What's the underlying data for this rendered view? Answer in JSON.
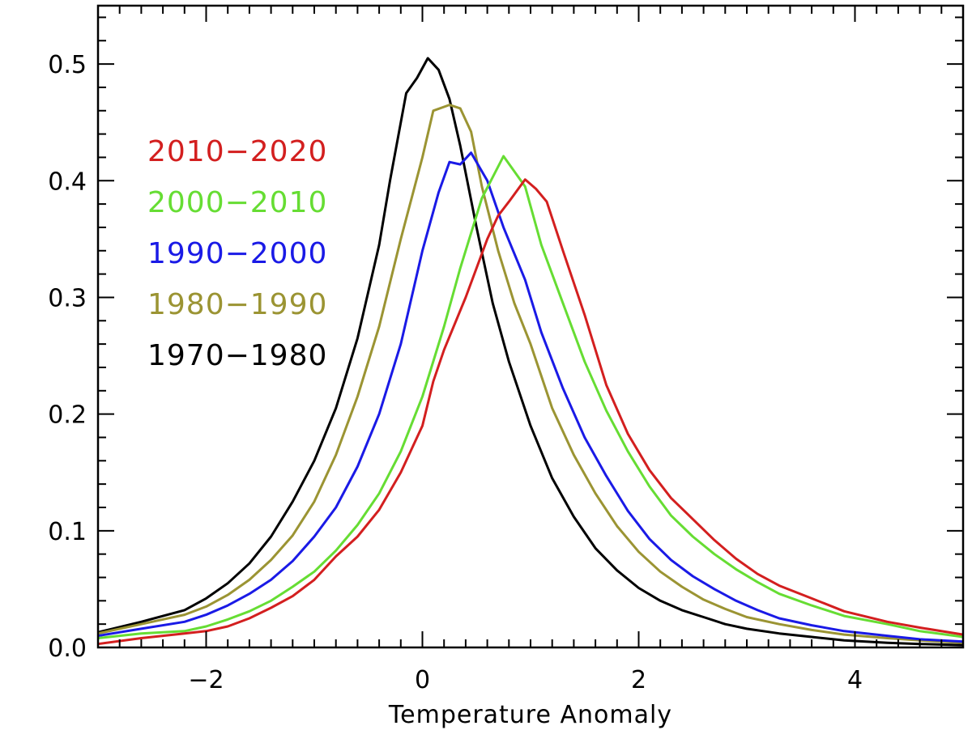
{
  "chart_data": {
    "type": "line",
    "title": "",
    "xlabel": "Temperature Anomaly",
    "ylabel": "",
    "xlim": [
      -3,
      5
    ],
    "ylim": [
      0,
      0.55
    ],
    "grid": false,
    "legend_position": "upper-left",
    "xticks": [
      -2,
      0,
      2,
      4
    ],
    "xtick_labels": [
      "−2",
      "0",
      "2",
      "4"
    ],
    "yticks": [
      0,
      0.1,
      0.2,
      0.3,
      0.4,
      0.5
    ],
    "ytick_labels": [
      "0.0",
      "0.1",
      "0.2",
      "0.3",
      "0.4",
      "0.5"
    ],
    "series": [
      {
        "name": "2010−2020",
        "color": "#d31f1f",
        "x": [
          -3.0,
          -2.6,
          -2.2,
          -2.0,
          -1.8,
          -1.6,
          -1.4,
          -1.2,
          -1.0,
          -0.8,
          -0.6,
          -0.4,
          -0.2,
          0.0,
          0.1,
          0.2,
          0.4,
          0.6,
          0.7,
          0.8,
          0.95,
          1.05,
          1.15,
          1.3,
          1.5,
          1.7,
          1.9,
          2.1,
          2.3,
          2.5,
          2.7,
          2.9,
          3.1,
          3.3,
          3.6,
          3.9,
          4.3,
          4.6,
          5.0
        ],
        "values": [
          0.003,
          0.008,
          0.012,
          0.014,
          0.018,
          0.025,
          0.034,
          0.044,
          0.058,
          0.078,
          0.095,
          0.118,
          0.15,
          0.19,
          0.228,
          0.255,
          0.3,
          0.35,
          0.37,
          0.382,
          0.401,
          0.393,
          0.382,
          0.34,
          0.285,
          0.225,
          0.183,
          0.152,
          0.128,
          0.11,
          0.092,
          0.076,
          0.063,
          0.053,
          0.042,
          0.031,
          0.022,
          0.017,
          0.011
        ]
      },
      {
        "name": "2000−2010",
        "color": "#66dd33",
        "x": [
          -3.0,
          -2.6,
          -2.2,
          -2.0,
          -1.8,
          -1.6,
          -1.4,
          -1.2,
          -1.0,
          -0.8,
          -0.6,
          -0.4,
          -0.2,
          0.0,
          0.2,
          0.35,
          0.55,
          0.75,
          0.95,
          1.1,
          1.3,
          1.5,
          1.7,
          1.9,
          2.1,
          2.3,
          2.5,
          2.7,
          2.9,
          3.1,
          3.3,
          3.6,
          3.9,
          4.3,
          4.6,
          5.0
        ],
        "values": [
          0.008,
          0.012,
          0.014,
          0.018,
          0.024,
          0.031,
          0.04,
          0.052,
          0.065,
          0.083,
          0.105,
          0.132,
          0.168,
          0.215,
          0.275,
          0.325,
          0.385,
          0.421,
          0.395,
          0.345,
          0.295,
          0.245,
          0.203,
          0.168,
          0.138,
          0.113,
          0.095,
          0.08,
          0.067,
          0.056,
          0.046,
          0.036,
          0.027,
          0.02,
          0.014,
          0.009
        ]
      },
      {
        "name": "1990−2000",
        "color": "#1a1ae6",
        "x": [
          -3.0,
          -2.6,
          -2.2,
          -2.0,
          -1.8,
          -1.6,
          -1.4,
          -1.2,
          -1.0,
          -0.8,
          -0.6,
          -0.4,
          -0.2,
          0.0,
          0.15,
          0.25,
          0.35,
          0.45,
          0.6,
          0.75,
          0.95,
          1.1,
          1.3,
          1.5,
          1.7,
          1.9,
          2.1,
          2.3,
          2.5,
          2.7,
          2.9,
          3.1,
          3.3,
          3.6,
          3.9,
          4.3,
          4.6,
          5.0
        ],
        "values": [
          0.01,
          0.016,
          0.022,
          0.028,
          0.036,
          0.046,
          0.058,
          0.074,
          0.095,
          0.12,
          0.155,
          0.2,
          0.26,
          0.34,
          0.39,
          0.416,
          0.414,
          0.424,
          0.4,
          0.36,
          0.315,
          0.27,
          0.222,
          0.18,
          0.147,
          0.117,
          0.093,
          0.075,
          0.061,
          0.05,
          0.04,
          0.032,
          0.025,
          0.019,
          0.014,
          0.01,
          0.007,
          0.005
        ]
      },
      {
        "name": "1980−1990",
        "color": "#9b9433",
        "x": [
          -3.0,
          -2.6,
          -2.2,
          -2.0,
          -1.8,
          -1.6,
          -1.4,
          -1.2,
          -1.0,
          -0.8,
          -0.6,
          -0.4,
          -0.2,
          0.0,
          0.1,
          0.25,
          0.35,
          0.45,
          0.55,
          0.7,
          0.85,
          1.0,
          1.2,
          1.4,
          1.6,
          1.8,
          2.0,
          2.2,
          2.4,
          2.6,
          2.8,
          3.0,
          3.3,
          3.6,
          3.9,
          4.3,
          4.6,
          5.0
        ],
        "values": [
          0.012,
          0.02,
          0.028,
          0.035,
          0.045,
          0.058,
          0.075,
          0.096,
          0.125,
          0.165,
          0.215,
          0.275,
          0.35,
          0.42,
          0.46,
          0.465,
          0.462,
          0.442,
          0.395,
          0.34,
          0.295,
          0.26,
          0.205,
          0.165,
          0.132,
          0.104,
          0.082,
          0.065,
          0.052,
          0.041,
          0.033,
          0.026,
          0.02,
          0.015,
          0.011,
          0.008,
          0.006,
          0.004
        ]
      },
      {
        "name": "1970−1980",
        "color": "#000000",
        "x": [
          -3.0,
          -2.6,
          -2.2,
          -2.0,
          -1.8,
          -1.6,
          -1.4,
          -1.2,
          -1.0,
          -0.8,
          -0.6,
          -0.4,
          -0.3,
          -0.15,
          -0.05,
          0.05,
          0.15,
          0.25,
          0.35,
          0.5,
          0.65,
          0.8,
          1.0,
          1.2,
          1.4,
          1.6,
          1.8,
          2.0,
          2.2,
          2.4,
          2.6,
          2.8,
          3.0,
          3.3,
          3.6,
          3.9,
          4.3,
          4.6,
          5.0
        ],
        "values": [
          0.013,
          0.022,
          0.032,
          0.042,
          0.055,
          0.072,
          0.095,
          0.125,
          0.16,
          0.205,
          0.265,
          0.345,
          0.4,
          0.475,
          0.488,
          0.505,
          0.495,
          0.47,
          0.43,
          0.36,
          0.295,
          0.245,
          0.19,
          0.145,
          0.112,
          0.085,
          0.066,
          0.051,
          0.04,
          0.032,
          0.026,
          0.02,
          0.016,
          0.012,
          0.009,
          0.006,
          0.004,
          0.003,
          0.002
        ]
      }
    ]
  }
}
